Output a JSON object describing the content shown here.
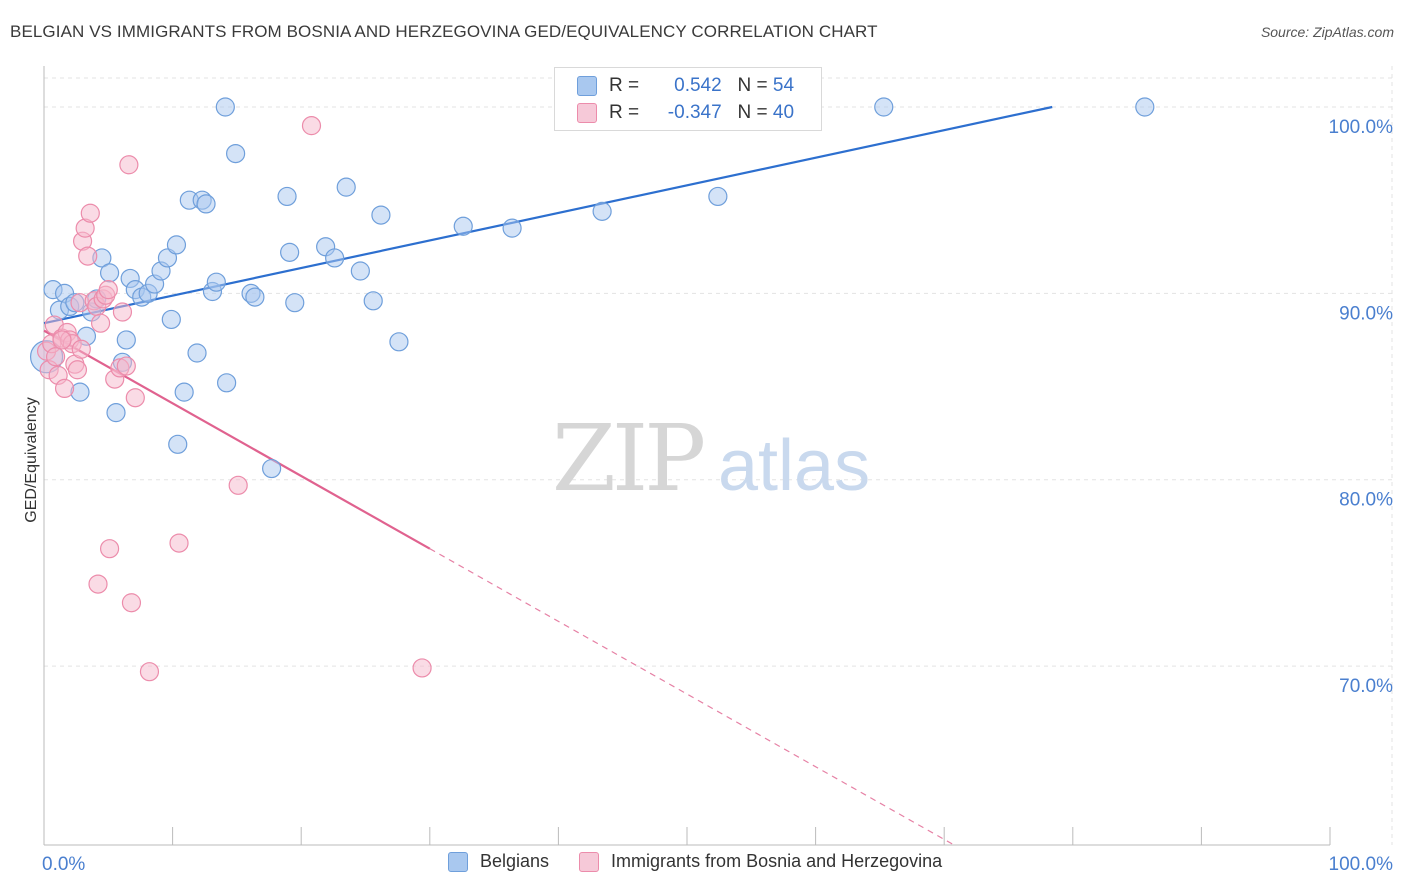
{
  "title": "BELGIAN VS IMMIGRANTS FROM BOSNIA AND HERZEGOVINA GED/EQUIVALENCY CORRELATION CHART",
  "source": "Source: ZipAtlas.com",
  "watermark": {
    "zip": "ZIP",
    "atlas": "atlas"
  },
  "legend": {
    "rows": [
      {
        "r_label": "R =",
        "r_value": "0.542",
        "n_label": "N =",
        "n_value": "54"
      },
      {
        "r_label": "R =",
        "r_value": "-0.347",
        "n_label": "N =",
        "n_value": "40"
      }
    ]
  },
  "colors": {
    "blue_fill": "#a9c8ef",
    "blue_stroke": "#6f9fdb",
    "blue_line": "#2d6fcf",
    "pink_fill": "#f6b8cc",
    "pink_stroke": "#ec8cab",
    "pink_line": "#e0628f",
    "grid": "#e3e3e3",
    "axis_text": "#4a7fcf"
  },
  "chart_data": {
    "type": "scatter",
    "title": "BELGIAN VS IMMIGRANTS FROM BOSNIA AND HERZEGOVINA GED/EQUIVALENCY CORRELATION CHART",
    "xlabel": "",
    "ylabel": "GED/Equivalency",
    "xlim": [
      0,
      100
    ],
    "ylim": [
      60.4,
      102.2
    ],
    "x_tick_labels": [
      "0.0%",
      "100.0%"
    ],
    "y_ticks": [
      70,
      80,
      90,
      100
    ],
    "y_tick_labels": [
      "70.0%",
      "80.0%",
      "90.0%",
      "100.0%"
    ],
    "series": [
      {
        "name": "Belgians",
        "color": "blue",
        "r": "0.542",
        "n": "54",
        "points": [
          [
            0.2,
            86.6
          ],
          [
            0.7,
            90.2
          ],
          [
            1.2,
            89.1
          ],
          [
            1.6,
            90.0
          ],
          [
            2.0,
            89.3
          ],
          [
            2.4,
            89.5
          ],
          [
            2.8,
            84.7
          ],
          [
            3.3,
            87.7
          ],
          [
            3.7,
            89.0
          ],
          [
            4.1,
            89.7
          ],
          [
            4.5,
            91.9
          ],
          [
            5.1,
            91.1
          ],
          [
            5.6,
            83.6
          ],
          [
            6.1,
            86.3
          ],
          [
            6.4,
            87.5
          ],
          [
            6.7,
            90.8
          ],
          [
            7.1,
            90.2
          ],
          [
            7.6,
            89.8
          ],
          [
            8.1,
            90.0
          ],
          [
            8.6,
            90.5
          ],
          [
            9.1,
            91.2
          ],
          [
            9.6,
            91.9
          ],
          [
            9.9,
            88.6
          ],
          [
            10.3,
            92.6
          ],
          [
            10.4,
            81.9
          ],
          [
            10.9,
            84.7
          ],
          [
            11.3,
            95.0
          ],
          [
            11.9,
            86.8
          ],
          [
            12.3,
            95.0
          ],
          [
            12.6,
            94.8
          ],
          [
            13.1,
            90.1
          ],
          [
            13.4,
            90.6
          ],
          [
            14.1,
            100.0
          ],
          [
            14.2,
            85.2
          ],
          [
            14.9,
            97.5
          ],
          [
            16.1,
            90.0
          ],
          [
            16.4,
            89.8
          ],
          [
            17.7,
            80.6
          ],
          [
            18.9,
            95.2
          ],
          [
            19.1,
            92.2
          ],
          [
            19.5,
            89.5
          ],
          [
            21.9,
            92.5
          ],
          [
            22.6,
            91.9
          ],
          [
            23.5,
            95.7
          ],
          [
            24.6,
            91.2
          ],
          [
            25.6,
            89.6
          ],
          [
            26.2,
            94.2
          ],
          [
            27.6,
            87.4
          ],
          [
            32.6,
            93.6
          ],
          [
            36.4,
            93.5
          ],
          [
            43.4,
            94.4
          ],
          [
            52.4,
            95.2
          ],
          [
            65.3,
            100.0
          ],
          [
            85.6,
            100.0
          ]
        ],
        "trend": {
          "x0": 0,
          "y0": 88.4,
          "x1": 78.4,
          "y1": 100.0,
          "dash_to": null
        }
      },
      {
        "name": "Immigrants from Bosnia and Herzegovina",
        "color": "pink",
        "r": "-0.347",
        "n": "40",
        "points": [
          [
            0.2,
            86.9
          ],
          [
            0.4,
            85.9
          ],
          [
            0.6,
            87.3
          ],
          [
            0.8,
            88.3
          ],
          [
            0.9,
            86.6
          ],
          [
            1.1,
            85.6
          ],
          [
            1.4,
            87.6
          ],
          [
            1.6,
            84.9
          ],
          [
            1.8,
            87.9
          ],
          [
            2.0,
            87.5
          ],
          [
            2.2,
            87.3
          ],
          [
            2.4,
            86.2
          ],
          [
            2.6,
            85.9
          ],
          [
            2.8,
            89.5
          ],
          [
            3.0,
            92.8
          ],
          [
            3.2,
            93.5
          ],
          [
            3.4,
            92.0
          ],
          [
            3.6,
            94.3
          ],
          [
            3.9,
            89.6
          ],
          [
            4.1,
            89.3
          ],
          [
            4.2,
            74.4
          ],
          [
            4.4,
            88.4
          ],
          [
            4.6,
            89.7
          ],
          [
            4.8,
            89.9
          ],
          [
            5.0,
            90.2
          ],
          [
            5.1,
            76.3
          ],
          [
            5.5,
            85.4
          ],
          [
            5.9,
            86.0
          ],
          [
            6.1,
            89.0
          ],
          [
            6.4,
            86.1
          ],
          [
            6.6,
            96.9
          ],
          [
            6.8,
            73.4
          ],
          [
            7.1,
            84.4
          ],
          [
            8.2,
            69.7
          ],
          [
            10.5,
            76.6
          ],
          [
            15.1,
            79.7
          ],
          [
            20.8,
            99.0
          ],
          [
            29.4,
            69.9
          ],
          [
            1.4,
            87.5
          ],
          [
            2.9,
            87.0
          ]
        ],
        "trend": {
          "x0": 0,
          "y0": 88.0,
          "x1": 30.0,
          "y1": 76.3,
          "dash_to": 70.0
        }
      }
    ]
  }
}
